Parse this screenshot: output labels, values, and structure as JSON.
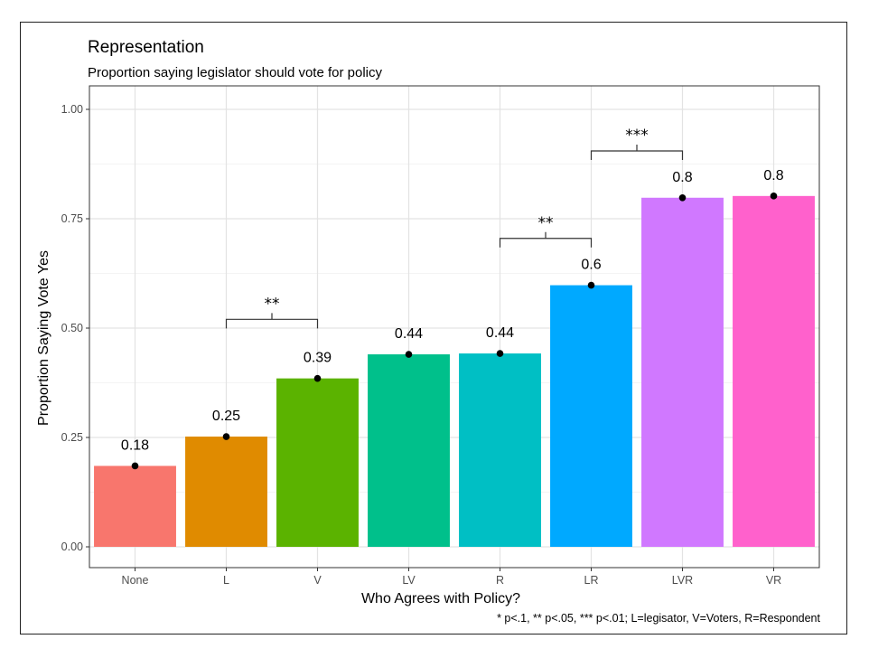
{
  "chart_data": {
    "type": "bar",
    "title": "Representation",
    "subtitle": "Proportion saying legislator should vote for policy",
    "xlabel": "Who Agrees with Policy?",
    "ylabel": "Proportion Saying Vote Yes",
    "caption": "* p<.1, ** p<.05, *** p<.01; L=legisator, V=Voters, R=Respondent",
    "categories": [
      "None",
      "L",
      "V",
      "LV",
      "R",
      "LR",
      "LVR",
      "VR"
    ],
    "values": [
      0.185,
      0.252,
      0.385,
      0.44,
      0.442,
      0.598,
      0.798,
      0.802
    ],
    "value_labels": [
      "0.18",
      "0.25",
      "0.39",
      "0.44",
      "0.44",
      "0.6",
      "0.8",
      "0.8"
    ],
    "colors": [
      "#F8766D",
      "#E08B00",
      "#5BB300",
      "#00C08B",
      "#00BFC4",
      "#00A9FF",
      "#D078FF",
      "#FF61CC"
    ],
    "ylim": [
      0,
      1.0
    ],
    "yticks": [
      0,
      0.25,
      0.5,
      0.75,
      1.0
    ],
    "ytick_labels": [
      "0.00",
      "0.25",
      "0.50",
      "0.75",
      "1.00"
    ],
    "grid": true,
    "significance": [
      {
        "from": "L",
        "to": "V",
        "label": "**",
        "y": 0.52
      },
      {
        "from": "R",
        "to": "LR",
        "label": "**",
        "y": 0.705
      },
      {
        "from": "LR",
        "to": "LVR",
        "label": "***",
        "y": 0.905
      }
    ]
  }
}
